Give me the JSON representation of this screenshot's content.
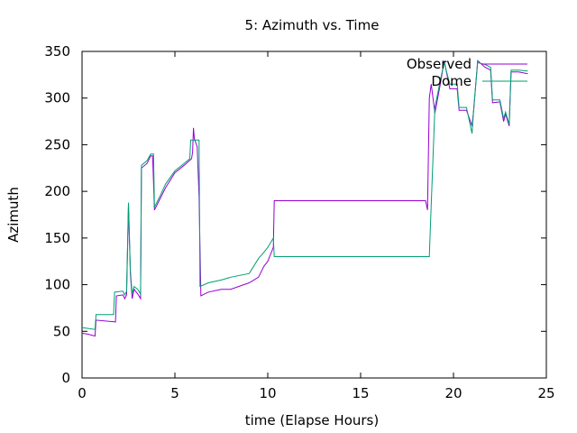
{
  "chart_data": {
    "type": "line",
    "title": "5: Azimuth vs. Time",
    "xlabel": "time (Elapse Hours)",
    "ylabel": "Azimuth",
    "xlim": [
      0,
      25
    ],
    "ylim": [
      0,
      350
    ],
    "xticks": [
      0,
      5,
      10,
      15,
      20,
      25
    ],
    "yticks": [
      0,
      50,
      100,
      150,
      200,
      250,
      300,
      350
    ],
    "grid": false,
    "legend_position": "top-right",
    "series": [
      {
        "name": "Observed",
        "color": "#9400d3",
        "points": [
          [
            0,
            48
          ],
          [
            0.3,
            47
          ],
          [
            0.7,
            45
          ],
          [
            0.75,
            62
          ],
          [
            1.8,
            60
          ],
          [
            1.85,
            88
          ],
          [
            2.2,
            89
          ],
          [
            2.3,
            85
          ],
          [
            2.4,
            89
          ],
          [
            2.5,
            186
          ],
          [
            2.6,
            112
          ],
          [
            2.7,
            85
          ],
          [
            2.8,
            95
          ],
          [
            3.0,
            90
          ],
          [
            3.15,
            85
          ],
          [
            3.2,
            225
          ],
          [
            3.5,
            230
          ],
          [
            3.7,
            238
          ],
          [
            3.8,
            238
          ],
          [
            3.9,
            180
          ],
          [
            4.2,
            192
          ],
          [
            4.5,
            204
          ],
          [
            5.0,
            220
          ],
          [
            5.5,
            228
          ],
          [
            5.9,
            235
          ],
          [
            5.95,
            242
          ],
          [
            6.0,
            268
          ],
          [
            6.05,
            256
          ],
          [
            6.2,
            248
          ],
          [
            6.3,
            195
          ],
          [
            6.4,
            88
          ],
          [
            6.8,
            92
          ],
          [
            7.5,
            95
          ],
          [
            8.0,
            95
          ],
          [
            9.0,
            102
          ],
          [
            9.5,
            108
          ],
          [
            9.8,
            120
          ],
          [
            10.0,
            125
          ],
          [
            10.3,
            140
          ],
          [
            10.35,
            190
          ],
          [
            12.0,
            190
          ],
          [
            15.0,
            190
          ],
          [
            18.5,
            190
          ],
          [
            18.6,
            180
          ],
          [
            18.7,
            300
          ],
          [
            18.8,
            315
          ],
          [
            19.0,
            284
          ],
          [
            19.3,
            316
          ],
          [
            19.5,
            340
          ],
          [
            19.8,
            310
          ],
          [
            20.2,
            310
          ],
          [
            20.3,
            287
          ],
          [
            20.7,
            287
          ],
          [
            21.0,
            270
          ],
          [
            21.1,
            290
          ],
          [
            21.3,
            340
          ],
          [
            21.7,
            333
          ],
          [
            22.0,
            330
          ],
          [
            22.1,
            295
          ],
          [
            22.5,
            296
          ],
          [
            22.7,
            275
          ],
          [
            22.8,
            283
          ],
          [
            23.0,
            270
          ],
          [
            23.1,
            328
          ],
          [
            23.5,
            328
          ],
          [
            24.0,
            326
          ]
        ]
      },
      {
        "name": "Dome",
        "color": "#009e73",
        "points": [
          [
            0,
            54
          ],
          [
            0.7,
            52
          ],
          [
            0.75,
            68
          ],
          [
            1.7,
            68
          ],
          [
            1.75,
            92
          ],
          [
            2.2,
            93
          ],
          [
            2.3,
            89
          ],
          [
            2.4,
            93
          ],
          [
            2.5,
            188
          ],
          [
            2.6,
            115
          ],
          [
            2.7,
            90
          ],
          [
            2.8,
            98
          ],
          [
            3.0,
            95
          ],
          [
            3.15,
            90
          ],
          [
            3.2,
            228
          ],
          [
            3.5,
            233
          ],
          [
            3.7,
            240
          ],
          [
            3.85,
            240
          ],
          [
            3.9,
            183
          ],
          [
            4.2,
            195
          ],
          [
            4.5,
            208
          ],
          [
            5.0,
            222
          ],
          [
            5.5,
            230
          ],
          [
            5.8,
            235
          ],
          [
            5.85,
            255
          ],
          [
            6.3,
            255
          ],
          [
            6.35,
            98
          ],
          [
            6.8,
            102
          ],
          [
            7.5,
            105
          ],
          [
            8.0,
            108
          ],
          [
            9.0,
            112
          ],
          [
            9.5,
            128
          ],
          [
            9.8,
            135
          ],
          [
            10.0,
            140
          ],
          [
            10.3,
            150
          ],
          [
            10.35,
            130
          ],
          [
            12.0,
            130
          ],
          [
            15.0,
            130
          ],
          [
            18.7,
            130
          ],
          [
            18.75,
            160
          ],
          [
            19.0,
            290
          ],
          [
            19.3,
            320
          ],
          [
            19.5,
            338
          ],
          [
            19.8,
            315
          ],
          [
            20.2,
            315
          ],
          [
            20.3,
            290
          ],
          [
            20.7,
            290
          ],
          [
            21.0,
            262
          ],
          [
            21.1,
            292
          ],
          [
            21.3,
            338
          ],
          [
            21.7,
            336
          ],
          [
            22.0,
            333
          ],
          [
            22.1,
            298
          ],
          [
            22.5,
            298
          ],
          [
            22.7,
            278
          ],
          [
            22.8,
            285
          ],
          [
            23.0,
            272
          ],
          [
            23.1,
            330
          ],
          [
            23.5,
            330
          ],
          [
            24.0,
            329
          ]
        ]
      }
    ]
  }
}
